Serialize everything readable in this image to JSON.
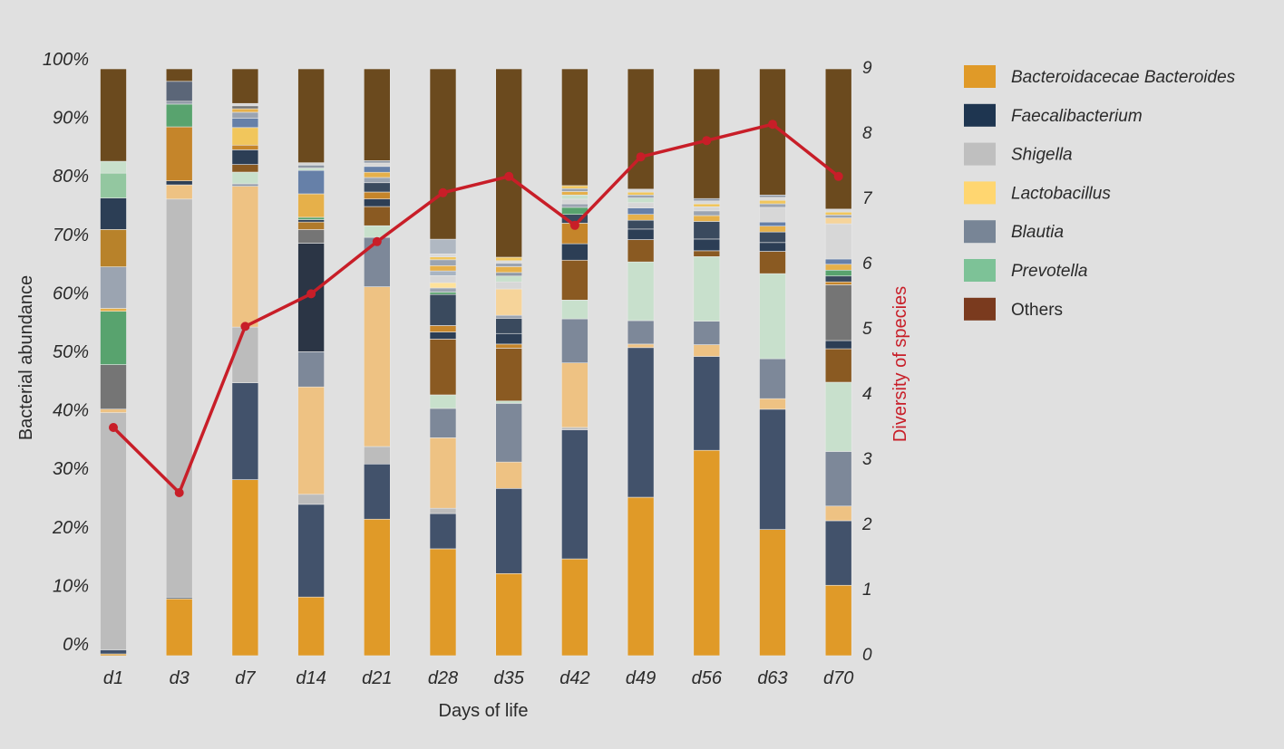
{
  "chart_data": {
    "type": "bar",
    "stacked": true,
    "normalized": true,
    "categories": [
      "d1",
      "d3",
      "d7",
      "d14",
      "d21",
      "d28",
      "d35",
      "d42",
      "d49",
      "d56",
      "d63",
      "d70"
    ],
    "xlabel": "Days of life",
    "ylabel": "Bacterial abundance",
    "y2label": "Diversity of species",
    "yticks": [
      "0%",
      "10%",
      "20%",
      "30%",
      "40%",
      "50%",
      "60%",
      "70%",
      "80%",
      "90%",
      "100%"
    ],
    "y2ticks": [
      "0",
      "1",
      "2",
      "3",
      "4",
      "5",
      "6",
      "7",
      "8",
      "9"
    ],
    "ylim": [
      0,
      100
    ],
    "y2lim": [
      0,
      9
    ],
    "legend_position": "right",
    "legend": [
      {
        "name": "Bacteroidacecae Bacteroides",
        "color": "#e09a28",
        "italic": true
      },
      {
        "name": "Faecalibacterium",
        "color": "#1e3550",
        "italic": true
      },
      {
        "name": "Shigella",
        "color": "#bfbfbf",
        "italic": true
      },
      {
        "name": "Lactobacillus",
        "color": "#ffd670",
        "italic": true
      },
      {
        "name": "Blautia",
        "color": "#788596",
        "italic": true
      },
      {
        "name": "Prevotella",
        "color": "#7dc297",
        "italic": true
      },
      {
        "name": "Others",
        "color": "#7a3a1e",
        "italic": false
      }
    ],
    "stacks": [
      [
        {
          "v": 0.3,
          "c": "#e09a28"
        },
        {
          "v": 0.7,
          "c": "#42526b"
        },
        {
          "v": 40,
          "c": "#bcbcbc"
        },
        {
          "v": 0.6,
          "c": "#eec283"
        },
        {
          "v": 7.5,
          "c": "#757575"
        },
        {
          "v": 9,
          "c": "#58a36e"
        },
        {
          "v": 0.5,
          "c": "#e6b04a"
        },
        {
          "v": 7,
          "c": "#9ba4b1"
        },
        {
          "v": 6.3,
          "c": "#b8822a"
        },
        {
          "v": 5.3,
          "c": "#2c3e55"
        },
        {
          "v": 4.2,
          "c": "#93c7a0"
        },
        {
          "v": 2,
          "c": "#c8e0cc"
        },
        {
          "v": 15.6,
          "c": "#6b4a1e"
        }
      ],
      [
        {
          "v": 10,
          "c": "#e09a28"
        },
        {
          "v": 0.3,
          "c": "#6f7a85"
        },
        {
          "v": 70,
          "c": "#bcbcbc"
        },
        {
          "v": 2.5,
          "c": "#eec283"
        },
        {
          "v": 0.7,
          "c": "#2c3e55"
        },
        {
          "v": 9.5,
          "c": "#c5852a"
        },
        {
          "v": 4,
          "c": "#58a36e"
        },
        {
          "v": 0.5,
          "c": "#8f98a5"
        },
        {
          "v": 3.5,
          "c": "#5b6678"
        },
        {
          "v": 2.2,
          "c": "#6b4a1e"
        }
      ],
      [
        {
          "v": 30,
          "c": "#e09a28"
        },
        {
          "v": 16.5,
          "c": "#42526b"
        },
        {
          "v": 9.5,
          "c": "#bcbcbc"
        },
        {
          "v": 24,
          "c": "#eec283"
        },
        {
          "v": 0.4,
          "c": "#8f98a5"
        },
        {
          "v": 2,
          "c": "#c8e0cc"
        },
        {
          "v": 1.3,
          "c": "#8a5a22"
        },
        {
          "v": 2.5,
          "c": "#2c3e55"
        },
        {
          "v": 0.8,
          "c": "#c5852a"
        },
        {
          "v": 3,
          "c": "#f1c65c"
        },
        {
          "v": 1.6,
          "c": "#6680a8"
        },
        {
          "v": 1,
          "c": "#9ba4b1"
        },
        {
          "v": 0.6,
          "c": "#e6b04a"
        },
        {
          "v": 0.5,
          "c": "#757575"
        },
        {
          "v": 0.4,
          "c": "#d7d7d7"
        },
        {
          "v": 5.9,
          "c": "#6b4a1e"
        }
      ],
      [
        {
          "v": 10,
          "c": "#e09a28"
        },
        {
          "v": 15.8,
          "c": "#42526b"
        },
        {
          "v": 1.7,
          "c": "#bcbcbc"
        },
        {
          "v": 18.3,
          "c": "#eec283"
        },
        {
          "v": 6,
          "c": "#7d8899"
        },
        {
          "v": 18.5,
          "c": "#2b3545"
        },
        {
          "v": 2.3,
          "c": "#757575"
        },
        {
          "v": 1.3,
          "c": "#b07a2a"
        },
        {
          "v": 0.4,
          "c": "#2c3e55"
        },
        {
          "v": 0.4,
          "c": "#58a36e"
        },
        {
          "v": 4,
          "c": "#e6b04a"
        },
        {
          "v": 4,
          "c": "#6680a8"
        },
        {
          "v": 0.4,
          "c": "#c8e0cc"
        },
        {
          "v": 0.5,
          "c": "#8f98a5"
        },
        {
          "v": 0.4,
          "c": "#d7d7d7"
        },
        {
          "v": 16,
          "c": "#6b4a1e"
        }
      ],
      [
        {
          "v": 23.5,
          "c": "#e09a28"
        },
        {
          "v": 9.5,
          "c": "#42526b"
        },
        {
          "v": 3,
          "c": "#bcbcbc"
        },
        {
          "v": 27.5,
          "c": "#eec283"
        },
        {
          "v": 8.5,
          "c": "#7d8899"
        },
        {
          "v": 2,
          "c": "#c8e0cc"
        },
        {
          "v": 3.3,
          "c": "#8a5a22"
        },
        {
          "v": 1.3,
          "c": "#2c3e55"
        },
        {
          "v": 1.2,
          "c": "#c5852a"
        },
        {
          "v": 1.6,
          "c": "#3a4a5e"
        },
        {
          "v": 0.9,
          "c": "#9ba4b1"
        },
        {
          "v": 0.9,
          "c": "#e6b04a"
        },
        {
          "v": 1,
          "c": "#6680a8"
        },
        {
          "v": 0.6,
          "c": "#d7d7d7"
        },
        {
          "v": 0.4,
          "c": "#8f98a5"
        },
        {
          "v": 15.8,
          "c": "#6b4a1e"
        }
      ],
      [
        {
          "v": 18.2,
          "c": "#e09a28"
        },
        {
          "v": 6,
          "c": "#42526b"
        },
        {
          "v": 0.9,
          "c": "#bcbcbc"
        },
        {
          "v": 12,
          "c": "#eec283"
        },
        {
          "v": 5,
          "c": "#7d8899"
        },
        {
          "v": 2.3,
          "c": "#c8e0cc"
        },
        {
          "v": 9.5,
          "c": "#8a5a22"
        },
        {
          "v": 1.2,
          "c": "#2c3e55"
        },
        {
          "v": 1.1,
          "c": "#c5852a"
        },
        {
          "v": 5.3,
          "c": "#3a4a5e"
        },
        {
          "v": 0.4,
          "c": "#58a36e"
        },
        {
          "v": 0.7,
          "c": "#9ba4b1"
        },
        {
          "v": 0.9,
          "c": "#ffe29a"
        },
        {
          "v": 1.2,
          "c": "#d7d7d7"
        },
        {
          "v": 0.8,
          "c": "#a8b4c2"
        },
        {
          "v": 0.9,
          "c": "#e6b04a"
        },
        {
          "v": 1,
          "c": "#9ba4b1"
        },
        {
          "v": 0.5,
          "c": "#f1c65c"
        },
        {
          "v": 0.5,
          "c": "#d9d9d9"
        },
        {
          "v": 2.5,
          "c": "#b0b8c2"
        },
        {
          "v": 29,
          "c": "#6b4a1e"
        }
      ],
      [
        {
          "v": 14,
          "c": "#e09a28"
        },
        {
          "v": 14.5,
          "c": "#42526b"
        },
        {
          "v": 4.5,
          "c": "#eec283"
        },
        {
          "v": 10,
          "c": "#7d8899"
        },
        {
          "v": 0.4,
          "c": "#c8e0cc"
        },
        {
          "v": 9,
          "c": "#8a5a22"
        },
        {
          "v": 0.7,
          "c": "#c5852a"
        },
        {
          "v": 1.8,
          "c": "#2c3e55"
        },
        {
          "v": 2.6,
          "c": "#3a4a5e"
        },
        {
          "v": 0.5,
          "c": "#9ba4b1"
        },
        {
          "v": 4.5,
          "c": "#f6d49a"
        },
        {
          "v": 1.2,
          "c": "#d7d7d7"
        },
        {
          "v": 1,
          "c": "#c8e0cc"
        },
        {
          "v": 0.6,
          "c": "#8f98a5"
        },
        {
          "v": 1,
          "c": "#e6b04a"
        },
        {
          "v": 0.6,
          "c": "#9ba4b1"
        },
        {
          "v": 0.4,
          "c": "#d9d9d9"
        },
        {
          "v": 0.6,
          "c": "#f1c65c"
        },
        {
          "v": 32.1,
          "c": "#6b4a1e"
        }
      ],
      [
        {
          "v": 16.5,
          "c": "#e09a28"
        },
        {
          "v": 22,
          "c": "#42526b"
        },
        {
          "v": 0.4,
          "c": "#bcbcbc"
        },
        {
          "v": 11,
          "c": "#eec283"
        },
        {
          "v": 7.5,
          "c": "#7d8899"
        },
        {
          "v": 3.2,
          "c": "#c8e0cc"
        },
        {
          "v": 6.8,
          "c": "#8a5a22"
        },
        {
          "v": 2.8,
          "c": "#2c3e55"
        },
        {
          "v": 3.5,
          "c": "#c5852a"
        },
        {
          "v": 1.5,
          "c": "#3a4a5e"
        },
        {
          "v": 1.2,
          "c": "#58a36e"
        },
        {
          "v": 0.6,
          "c": "#9ba4b1"
        },
        {
          "v": 0.8,
          "c": "#d7d7d7"
        },
        {
          "v": 0.7,
          "c": "#c8e0cc"
        },
        {
          "v": 0.6,
          "c": "#e6b04a"
        },
        {
          "v": 0.5,
          "c": "#9ba4b1"
        },
        {
          "v": 0.5,
          "c": "#f1c65c"
        },
        {
          "v": 19.9,
          "c": "#6b4a1e"
        }
      ],
      [
        {
          "v": 27,
          "c": "#e09a28"
        },
        {
          "v": 25.5,
          "c": "#42526b"
        },
        {
          "v": 0.6,
          "c": "#eec283"
        },
        {
          "v": 4,
          "c": "#7d8899"
        },
        {
          "v": 10,
          "c": "#c8e0cc"
        },
        {
          "v": 3.8,
          "c": "#8a5a22"
        },
        {
          "v": 1.8,
          "c": "#2c3e55"
        },
        {
          "v": 1.5,
          "c": "#3a4a5e"
        },
        {
          "v": 1,
          "c": "#e6b04a"
        },
        {
          "v": 1.1,
          "c": "#6680a8"
        },
        {
          "v": 0.9,
          "c": "#d7d7d7"
        },
        {
          "v": 0.8,
          "c": "#c8e0cc"
        },
        {
          "v": 0.5,
          "c": "#9ba4b1"
        },
        {
          "v": 0.5,
          "c": "#f1c65c"
        },
        {
          "v": 0.5,
          "c": "#d9d9d9"
        },
        {
          "v": 20.5,
          "c": "#6b4a1e"
        }
      ],
      [
        {
          "v": 35,
          "c": "#e09a28"
        },
        {
          "v": 16,
          "c": "#42526b"
        },
        {
          "v": 2,
          "c": "#eec283"
        },
        {
          "v": 4,
          "c": "#7d8899"
        },
        {
          "v": 11,
          "c": "#c8e0cc"
        },
        {
          "v": 1,
          "c": "#8a5a22"
        },
        {
          "v": 2,
          "c": "#2c3e55"
        },
        {
          "v": 3,
          "c": "#3a4a5e"
        },
        {
          "v": 1,
          "c": "#e6b04a"
        },
        {
          "v": 0.8,
          "c": "#9ba4b1"
        },
        {
          "v": 0.7,
          "c": "#d7d7d7"
        },
        {
          "v": 0.5,
          "c": "#f1c65c"
        },
        {
          "v": 0.5,
          "c": "#d9d9d9"
        },
        {
          "v": 0.4,
          "c": "#8f98a5"
        },
        {
          "v": 22.1,
          "c": "#6b4a1e"
        }
      ],
      [
        {
          "v": 21.5,
          "c": "#e09a28"
        },
        {
          "v": 20.5,
          "c": "#42526b"
        },
        {
          "v": 1.8,
          "c": "#eec283"
        },
        {
          "v": 6.8,
          "c": "#7d8899"
        },
        {
          "v": 14.5,
          "c": "#c8e0cc"
        },
        {
          "v": 3.8,
          "c": "#8a5a22"
        },
        {
          "v": 1.5,
          "c": "#2c3e55"
        },
        {
          "v": 1.8,
          "c": "#3a4a5e"
        },
        {
          "v": 1,
          "c": "#e6b04a"
        },
        {
          "v": 0.7,
          "c": "#6680a8"
        },
        {
          "v": 2.5,
          "c": "#d7d7d7"
        },
        {
          "v": 0.6,
          "c": "#9ba4b1"
        },
        {
          "v": 0.6,
          "c": "#f1c65c"
        },
        {
          "v": 0.5,
          "c": "#d9d9d9"
        },
        {
          "v": 0.4,
          "c": "#8f98a5"
        },
        {
          "v": 21.5,
          "c": "#6b4a1e"
        }
      ],
      [
        {
          "v": 12,
          "c": "#e09a28"
        },
        {
          "v": 11,
          "c": "#42526b"
        },
        {
          "v": 2.5,
          "c": "#eec283"
        },
        {
          "v": 9.3,
          "c": "#7d8899"
        },
        {
          "v": 11.8,
          "c": "#c8e0cc"
        },
        {
          "v": 5.7,
          "c": "#8a5a22"
        },
        {
          "v": 1.4,
          "c": "#2c3e55"
        },
        {
          "v": 9.5,
          "c": "#757575"
        },
        {
          "v": 0.5,
          "c": "#c5852a"
        },
        {
          "v": 1,
          "c": "#3a4a5e"
        },
        {
          "v": 1,
          "c": "#58a36e"
        },
        {
          "v": 1,
          "c": "#e6b04a"
        },
        {
          "v": 0.9,
          "c": "#6680a8"
        },
        {
          "v": 6,
          "c": "#d7d7d7"
        },
        {
          "v": 1,
          "c": "#f6d49a"
        },
        {
          "v": 0.5,
          "c": "#9ba4b1"
        },
        {
          "v": 0.5,
          "c": "#f1c65c"
        },
        {
          "v": 0.5,
          "c": "#d9d9d9"
        },
        {
          "v": 23.9,
          "c": "#6b4a1e"
        }
      ]
    ],
    "diversity": {
      "name": "Diversity of species",
      "color": "#c81e28",
      "values": [
        3.5,
        2.5,
        5.05,
        5.55,
        6.35,
        7.1,
        7.35,
        6.6,
        7.65,
        7.9,
        8.15,
        7.35
      ]
    }
  }
}
